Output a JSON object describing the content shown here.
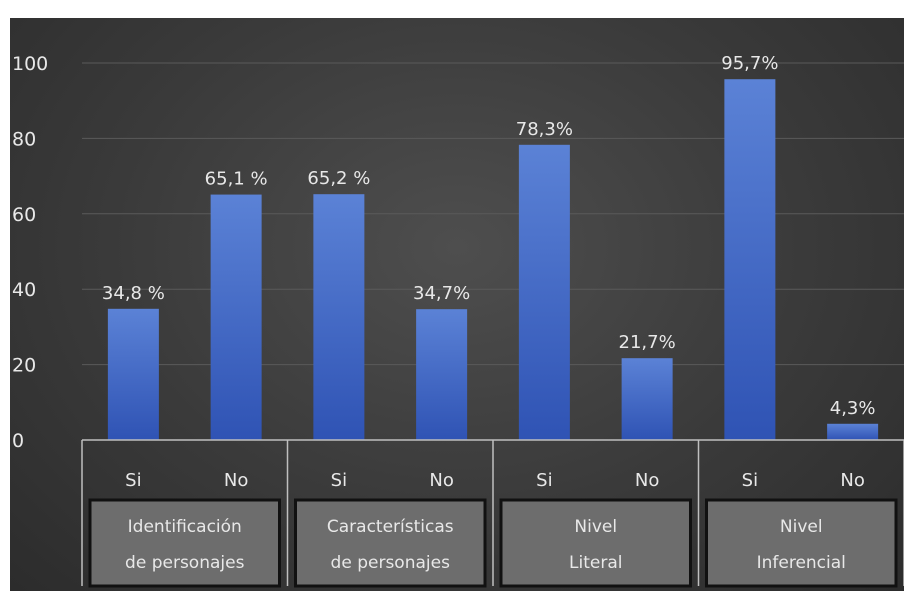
{
  "chart_data": {
    "type": "bar",
    "ylim": [
      0,
      100
    ],
    "yticks": [
      0,
      20,
      40,
      60,
      80,
      100
    ],
    "grid": true,
    "legend": "none",
    "groups": [
      {
        "label_lines": [
          "Identificación",
          "de personajes"
        ],
        "bars": [
          {
            "category": "Si",
            "value": 34.8,
            "label": "34,8 %"
          },
          {
            "category": "No",
            "value": 65.1,
            "label": "65,1 %"
          }
        ]
      },
      {
        "label_lines": [
          "Características",
          "de personajes"
        ],
        "bars": [
          {
            "category": "Si",
            "value": 65.2,
            "label": "65,2 %"
          },
          {
            "category": "No",
            "value": 34.7,
            "label": "34,7%"
          }
        ]
      },
      {
        "label_lines": [
          "Nivel",
          "Literal"
        ],
        "bars": [
          {
            "category": "Si",
            "value": 78.3,
            "label": "78,3%"
          },
          {
            "category": "No",
            "value": 21.7,
            "label": "21,7%"
          }
        ]
      },
      {
        "label_lines": [
          "Nivel",
          "Inferencial"
        ],
        "bars": [
          {
            "category": "Si",
            "value": 95.7,
            "label": "95,7%"
          },
          {
            "category": "No",
            "value": 4.3,
            "label": "4,3%"
          }
        ]
      }
    ],
    "colors": {
      "bar_top": "#5b82d6",
      "bar_bottom": "#2f53b4",
      "text": "#e8e8e8",
      "grid": "#5a5a5a",
      "group_box": "#6d6d6d",
      "group_box_border": "#111111",
      "axis_line": "#bfbfbf"
    }
  }
}
